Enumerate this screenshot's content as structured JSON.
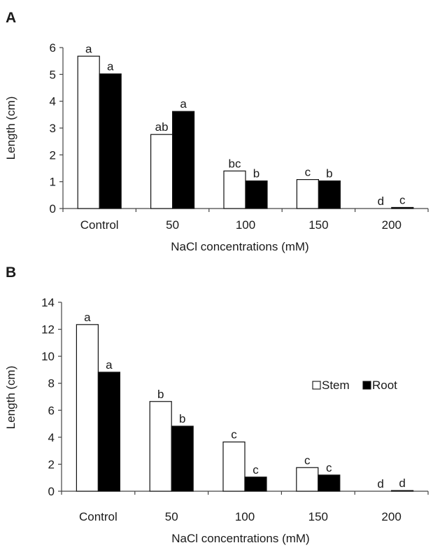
{
  "chart_data": [
    {
      "panel": "A",
      "type": "bar",
      "categories": [
        "Control",
        "50",
        "100",
        "150",
        "200"
      ],
      "series": [
        {
          "name": "Stem",
          "values": [
            5.68,
            2.76,
            1.4,
            1.08,
            0.0
          ],
          "letters": [
            "a",
            "ab",
            "bc",
            "c",
            "d"
          ],
          "color": "#ffffff"
        },
        {
          "name": "Root",
          "values": [
            5.02,
            3.62,
            1.03,
            1.03,
            0.04
          ],
          "letters": [
            "a",
            "a",
            "b",
            "b",
            "c"
          ],
          "color": "#000000"
        }
      ],
      "xlabel": "NaCl concentrations (mM)",
      "ylabel": "Length (cm)",
      "ylim": [
        0,
        6
      ],
      "yticks": [
        0,
        1,
        2,
        3,
        4,
        5,
        6
      ],
      "legend": null,
      "grid": false
    },
    {
      "panel": "B",
      "type": "bar",
      "categories": [
        "Control",
        "50",
        "100",
        "150",
        "200"
      ],
      "series": [
        {
          "name": "Stem",
          "values": [
            12.35,
            6.65,
            3.65,
            1.75,
            0.0
          ],
          "letters": [
            "a",
            "b",
            "c",
            "c",
            "d"
          ],
          "color": "#ffffff"
        },
        {
          "name": "Root",
          "values": [
            8.82,
            4.82,
            1.05,
            1.2,
            0.05
          ],
          "letters": [
            "a",
            "b",
            "c",
            "c",
            "d"
          ],
          "color": "#000000"
        }
      ],
      "xlabel": "NaCl concentrations (mM)",
      "ylabel": "Length (cm)",
      "ylim": [
        0,
        14
      ],
      "yticks": [
        0,
        2,
        4,
        6,
        8,
        10,
        12,
        14
      ],
      "legend": {
        "placement": "right",
        "entries": [
          "Stem",
          "Root"
        ]
      },
      "grid": false
    }
  ]
}
